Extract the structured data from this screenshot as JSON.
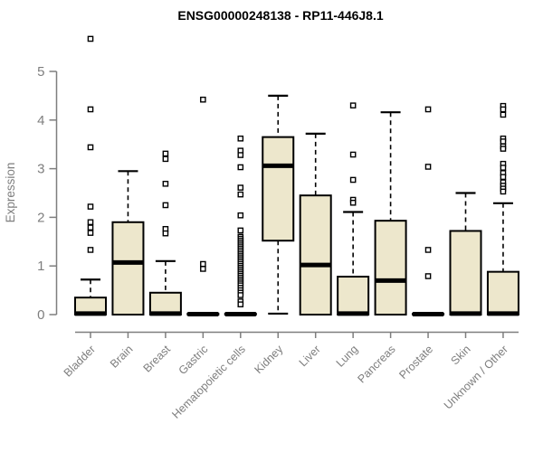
{
  "header": {
    "title": "ENSG00000248138 - RP11-446J8.1"
  },
  "chart_data": {
    "type": "boxplot",
    "title": "ENSG00000248138 - RP11-446J8.1",
    "xlabel": "",
    "ylabel": "Expression",
    "ylim": [
      0,
      5
    ],
    "yticks": [
      0,
      1,
      2,
      3,
      4,
      5
    ],
    "grid": false,
    "legend": "none",
    "colors": {
      "box_fill": "#EDE7CC",
      "box_stroke": "#000000",
      "axis": "#7E7E7E",
      "title": "#000000",
      "background": "#FFFFFF",
      "outlier_fill": "#FFFFFF"
    },
    "categories": [
      "Bladder",
      "Brain",
      "Breast",
      "Gastric",
      "Hematopoietic cells",
      "Kidney",
      "Liver",
      "Lung",
      "Pancreas",
      "Prostate",
      "Skin",
      "Unknown / Other"
    ],
    "series": [
      {
        "name": "Bladder",
        "whisker_low": 0,
        "q1": 0,
        "median": 0.02,
        "q3": 0.35,
        "whisker_high": 0.72,
        "outliers": [
          5.67,
          4.22,
          3.44,
          2.22,
          1.9,
          1.79,
          1.68,
          1.33
        ]
      },
      {
        "name": "Brain",
        "whisker_low": 0,
        "q1": 0,
        "median": 1.07,
        "q3": 1.9,
        "whisker_high": 2.95,
        "outliers": []
      },
      {
        "name": "Breast",
        "whisker_low": 0,
        "q1": 0,
        "median": 0.02,
        "q3": 0.45,
        "whisker_high": 1.1,
        "outliers": [
          3.31,
          3.2,
          2.69,
          2.25,
          1.76,
          1.67
        ]
      },
      {
        "name": "Gastric",
        "whisker_low": 0,
        "q1": 0,
        "median": 0.01,
        "q3": 0.02,
        "whisker_high": 0.03,
        "outliers": [
          4.42,
          1.04,
          0.94
        ]
      },
      {
        "name": "Hematopoietic cells",
        "whisker_low": 0,
        "q1": 0,
        "median": 0.01,
        "q3": 0.02,
        "whisker_high": 0.03,
        "outliers": [
          3.62,
          3.37,
          3.28,
          3.03,
          2.61,
          2.47,
          2.04,
          1.73,
          1.6,
          1.56,
          1.52,
          1.48,
          1.44,
          1.4,
          1.36,
          1.32,
          1.28,
          1.24,
          1.2,
          1.16,
          1.12,
          1.08,
          1.04,
          1.0,
          0.96,
          0.92,
          0.88,
          0.84,
          0.8,
          0.76,
          0.72,
          0.68,
          0.64,
          0.6,
          0.55,
          0.5,
          0.45,
          0.4,
          0.27,
          0.21
        ]
      },
      {
        "name": "Kidney",
        "whisker_low": 0.02,
        "q1": 1.52,
        "median": 3.06,
        "q3": 3.65,
        "whisker_high": 4.5,
        "outliers": []
      },
      {
        "name": "Liver",
        "whisker_low": 0,
        "q1": 0,
        "median": 1.02,
        "q3": 2.45,
        "whisker_high": 3.72,
        "outliers": []
      },
      {
        "name": "Lung",
        "whisker_low": 0,
        "q1": 0,
        "median": 0.02,
        "q3": 0.78,
        "whisker_high": 2.11,
        "outliers": [
          4.3,
          3.29,
          2.77,
          2.36,
          2.3
        ]
      },
      {
        "name": "Pancreas",
        "whisker_low": 0,
        "q1": 0,
        "median": 0.7,
        "q3": 1.93,
        "whisker_high": 4.16,
        "outliers": []
      },
      {
        "name": "Prostate",
        "whisker_low": 0,
        "q1": 0,
        "median": 0.01,
        "q3": 0.02,
        "whisker_high": 0.03,
        "outliers": [
          4.22,
          3.04,
          1.33,
          0.79
        ]
      },
      {
        "name": "Skin",
        "whisker_low": 0,
        "q1": 0,
        "median": 0.02,
        "q3": 1.72,
        "whisker_high": 2.5,
        "outliers": []
      },
      {
        "name": "Unknown / Other",
        "whisker_low": 0,
        "q1": 0,
        "median": 0.02,
        "q3": 0.88,
        "whisker_high": 2.29,
        "outliers": [
          4.29,
          4.22,
          4.11,
          3.62,
          3.56,
          3.46,
          3.41,
          3.1,
          3.02,
          2.91,
          2.83,
          2.72,
          2.65,
          2.59,
          2.53
        ]
      }
    ]
  }
}
